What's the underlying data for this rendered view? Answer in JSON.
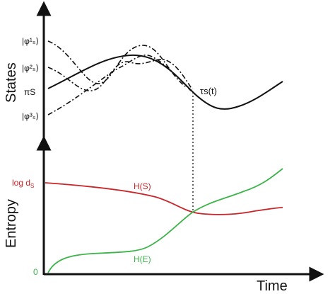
{
  "axes": {
    "states_label": "States",
    "entropy_label": "Entropy",
    "time_label": "Time"
  },
  "states_panel": {
    "state_labels": [
      "|φ¹ₛ⟩",
      "|φ²ₛ⟩",
      "πₛ",
      "|φ³ₛ⟩"
    ],
    "pi_label": "πS",
    "tau_label": "τs(t)"
  },
  "entropy_panel": {
    "log_label": "log d",
    "log_subscript": "S",
    "zero_label": "0",
    "hs_label": "H(S)",
    "he_label": "H(E)"
  },
  "colors": {
    "hs": "#c8262a",
    "he": "#3cb44a",
    "axis": "#111111"
  }
}
